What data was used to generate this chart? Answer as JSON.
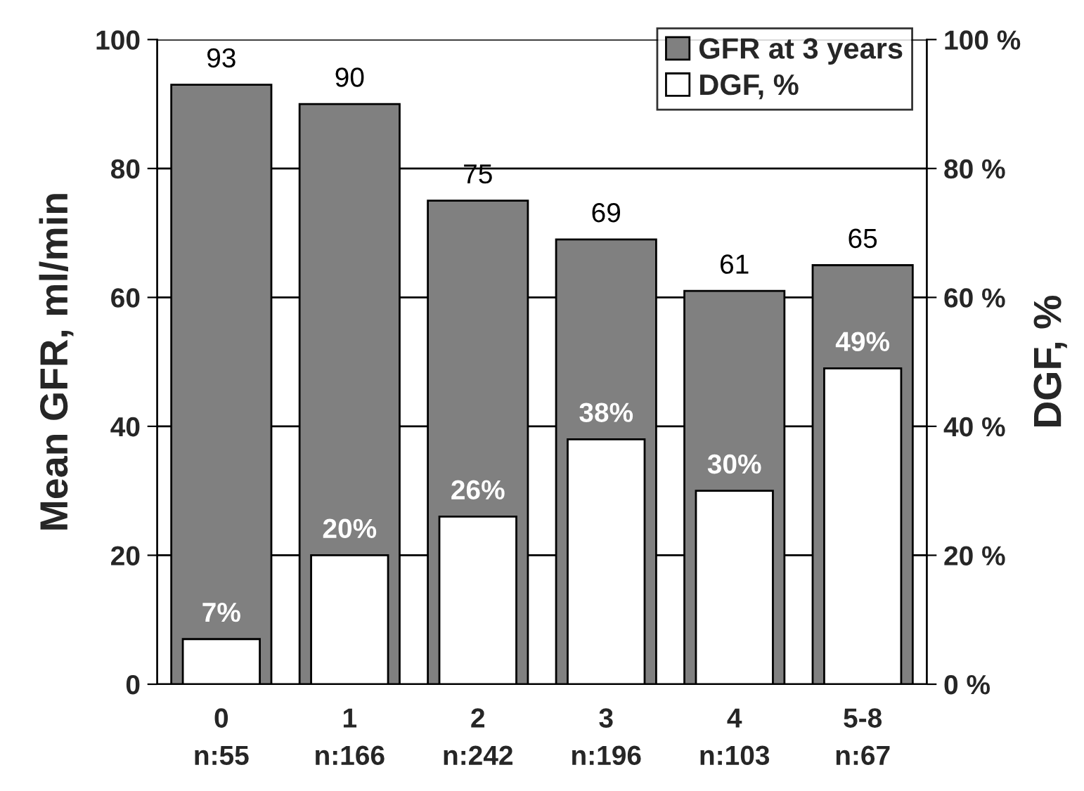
{
  "chart_data": {
    "type": "bar",
    "ylabel": "Mean GFR, ml/min",
    "y2label": "DGF, %",
    "categories": [
      "0\nn:55",
      "1\nn:166",
      "2\nn:242",
      "3\nn:196",
      "4\nn:103",
      "5-8\nn:67"
    ],
    "series": [
      {
        "name": "GFR at 3 years",
        "color": "#808080",
        "values": [
          93,
          90,
          75,
          69,
          61,
          65
        ],
        "value_labels": [
          "93",
          "90",
          "75",
          "69",
          "61",
          "65"
        ]
      },
      {
        "name": "DGF, %",
        "color": "#ffffff",
        "axis": "y2",
        "values": [
          7,
          20,
          26,
          38,
          30,
          49
        ],
        "value_labels": [
          "7%",
          "20%",
          "26%",
          "38%",
          "30%",
          "49%"
        ]
      }
    ],
    "ylim": [
      0,
      100
    ],
    "yticks": [
      0,
      20,
      40,
      60,
      80,
      100
    ],
    "y2lim": [
      0,
      100
    ],
    "y2ticks": [
      {
        "value": 0,
        "label": "0 %"
      },
      {
        "value": 20,
        "label": "20 %"
      },
      {
        "value": 40,
        "label": "40 %"
      },
      {
        "value": 60,
        "label": "60 %"
      },
      {
        "value": 80,
        "label": "80 %"
      },
      {
        "value": 100,
        "label": "100 %"
      }
    ],
    "grid": "y",
    "legend": "top right"
  }
}
